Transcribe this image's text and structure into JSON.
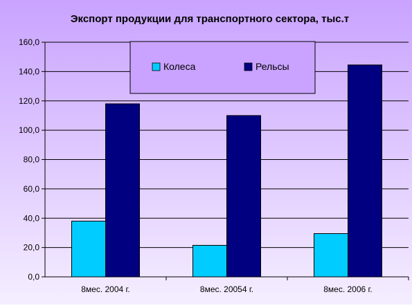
{
  "chart_data": {
    "type": "bar",
    "title": "Экспорт продукции для транспортного сектора, тыс.т",
    "categories": [
      "8мес. 2004 г.",
      "8мес. 20054 г.",
      "8мес. 2006 г."
    ],
    "series": [
      {
        "name": "Колеса",
        "color": "#00CCFF",
        "values": [
          38.0,
          21.5,
          29.5
        ]
      },
      {
        "name": "Рельсы",
        "color": "#000080",
        "values": [
          118.0,
          110.0,
          144.5
        ]
      }
    ],
    "ylim": [
      0,
      160
    ],
    "yticks": [
      "0,0",
      "20,0",
      "40,0",
      "60,0",
      "80,0",
      "100,0",
      "120,0",
      "140,0",
      "160,0"
    ],
    "legend_position": "top-center",
    "grid": true
  },
  "colors": {
    "background_top": "#C9A3FF",
    "background_bottom": "#F5EEFF"
  }
}
